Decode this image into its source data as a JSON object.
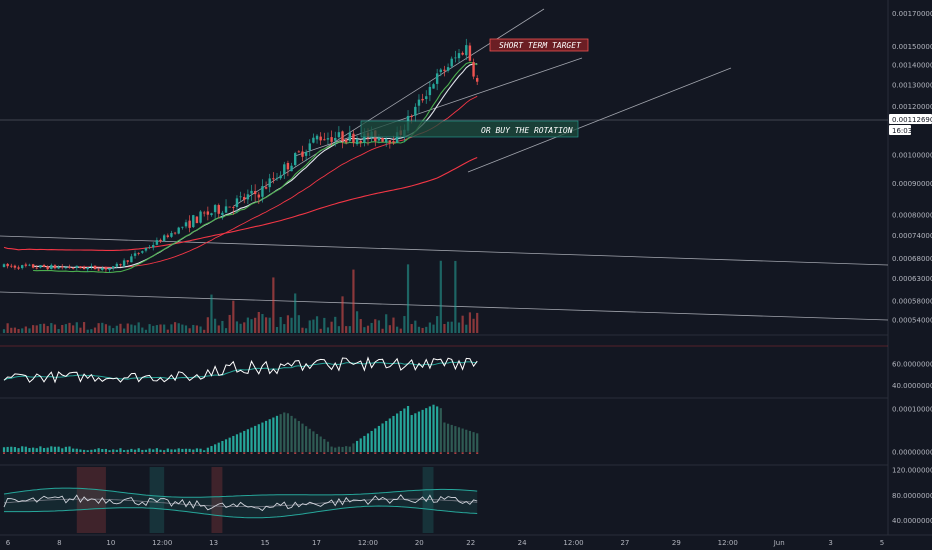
{
  "colors": {
    "background": "#131722",
    "up": "#26a69a",
    "down": "#ef5350",
    "grid_line": "#2a2e39",
    "price_tag": "#ffffff",
    "short_term_target_box": "#6b1e24",
    "rotation_box": "#1e4d3f",
    "channel": "#d1d4dc",
    "ma_fast": "#e0e3eb",
    "ma_mid": "#4caf50",
    "ma_slow": "#f23645"
  },
  "annotations": {
    "short_term_target": "SHORT TERM TARGET",
    "buy_the_rotation": "OR BUY THE ROTATION"
  },
  "last_price": {
    "value": "0.00112690",
    "countdown": "16:03"
  },
  "x_axis_labels": [
    "6",
    "8",
    "10",
    "12:00",
    "13",
    "15",
    "17",
    "12:00",
    "20",
    "22",
    "24",
    "12:00",
    "27",
    "29",
    "12:00",
    "Jun",
    "3",
    "5"
  ],
  "chart_data": [
    {
      "type": "candlestick",
      "panel": "price",
      "y_tick_labels": [
        "0.00170000",
        "0.00150000",
        "0.00140000",
        "0.00130000",
        "0.00120000",
        "0.00112690",
        "0.00100000",
        "0.00090000",
        "0.00080000",
        "0.00074000",
        "0.00068000",
        "0.00063000",
        "0.00058000",
        "0.00054000"
      ],
      "y_tick_values": [
        0.0017,
        0.0015,
        0.0014,
        0.0013,
        0.0012,
        0.0011269,
        0.001,
        0.0009,
        0.0008,
        0.00074,
        0.00068,
        0.00063,
        0.00058,
        0.00054
      ],
      "scale": "log",
      "ylim": [
        0.00052,
        0.00176
      ],
      "price_trend": {
        "segments": [
          {
            "from": 0,
            "to": 30,
            "start": 0.00066,
            "end": 0.000655
          },
          {
            "from": 30,
            "to": 52,
            "start": 0.000655,
            "end": 0.000785
          },
          {
            "from": 52,
            "to": 70,
            "start": 0.000785,
            "end": 0.00087
          },
          {
            "from": 70,
            "to": 86,
            "start": 0.00087,
            "end": 0.00107
          },
          {
            "from": 86,
            "to": 108,
            "start": 0.00107,
            "end": 0.00107
          },
          {
            "from": 108,
            "to": 118,
            "start": 0.00107,
            "end": 0.00132
          },
          {
            "from": 118,
            "to": 127,
            "start": 0.00132,
            "end": 0.0015
          },
          {
            "from": 127,
            "to": 131,
            "start": 0.0015,
            "end": 0.00125
          }
        ],
        "n_candles": 131
      }
    },
    {
      "type": "bar",
      "panel": "volume"
    },
    {
      "type": "line",
      "panel": "oscillator-1",
      "y_tick_labels": [
        "60.00000000",
        "40.00000000"
      ],
      "y_tick_values": [
        60,
        40
      ],
      "ylim": [
        30,
        75
      ]
    },
    {
      "type": "bar",
      "panel": "histogram",
      "y_tick_labels": [
        "0.00010000",
        "0.00000000"
      ],
      "y_tick_values": [
        0.0001,
        0
      ]
    },
    {
      "type": "area",
      "panel": "band-oscillator",
      "y_tick_labels": [
        "120.00000000",
        "80.00000000",
        "40.00000000"
      ],
      "y_tick_values": [
        120,
        80,
        40
      ],
      "ylim": [
        20,
        125
      ]
    }
  ]
}
